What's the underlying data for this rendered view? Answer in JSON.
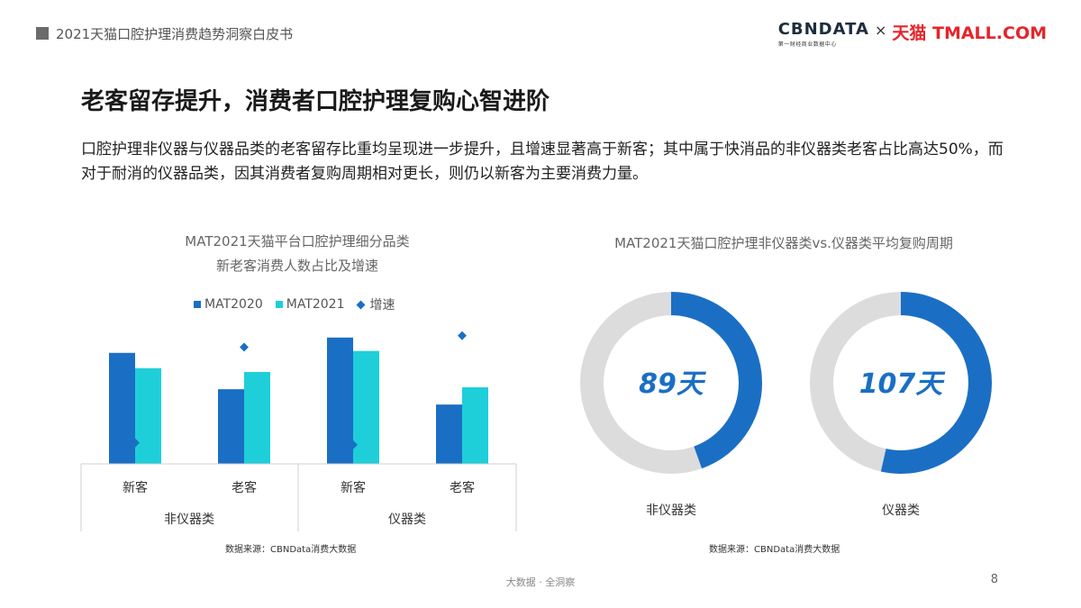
{
  "header": {
    "title": "2021天猫口腔护理消费趋势洞察白皮书"
  },
  "logo": {
    "cbn": "CBNDATA",
    "cbn_sub": "第一财经商业数据中心",
    "x": "×",
    "tmall": "天猫 TMALL.COM"
  },
  "slide": {
    "title": "老客留存提升，消费者口腔护理复购心智进阶",
    "description": "口腔护理非仪器与仪器品类的老客留存比重均呈现进一步提升，且增速显著高于新客；其中属于快消品的非仪器类老客占比高达50%，而对于耐消的仪器品类，因其消费者复购周期相对更长，则仍以新客为主要消费力量。"
  },
  "colors": {
    "mat2020": "#1a6fc4",
    "mat2021": "#1ecfd9",
    "growth": "#1a6fc4",
    "ring": "#1a6fc4",
    "ring_bg": "#dcdcdc",
    "center_text": "#1a6fc4"
  },
  "chart_data": [
    {
      "type": "bar",
      "title": "MAT2021天猫平台口腔护理细分品类",
      "subtitle": "新老客消费人数占比及增速",
      "categories": [
        "新客",
        "老客",
        "新客",
        "老客"
      ],
      "groups": [
        {
          "label": "非仪器类",
          "categories": [
            "新客",
            "老客"
          ]
        },
        {
          "label": "仪器类",
          "categories": [
            "新客",
            "老客"
          ]
        }
      ],
      "series": [
        {
          "name": "MAT2020",
          "values": [
            58,
            39,
            66,
            31
          ]
        },
        {
          "name": "MAT2021",
          "values": [
            50,
            48,
            59,
            40
          ]
        },
        {
          "name": "增速",
          "marker": "diamond",
          "values": [
            11,
            61,
            10,
            67
          ]
        }
      ],
      "ylim": [
        0,
        80
      ],
      "grid": false,
      "legend": "top",
      "source": "数据来源：CBNData消费大数据"
    },
    {
      "type": "pie",
      "title": "MAT2021天猫口腔护理非仪器类vs.仪器类平均复购周期",
      "unit": "天",
      "max": 200,
      "items": [
        {
          "label": "非仪器类",
          "value": 89,
          "display": "89天"
        },
        {
          "label": "仪器类",
          "value": 107,
          "display": "107天"
        }
      ],
      "source": "数据来源：CBNData消费大数据"
    }
  ],
  "footer": {
    "text": "大数据 · 全洞察",
    "page": "8"
  }
}
